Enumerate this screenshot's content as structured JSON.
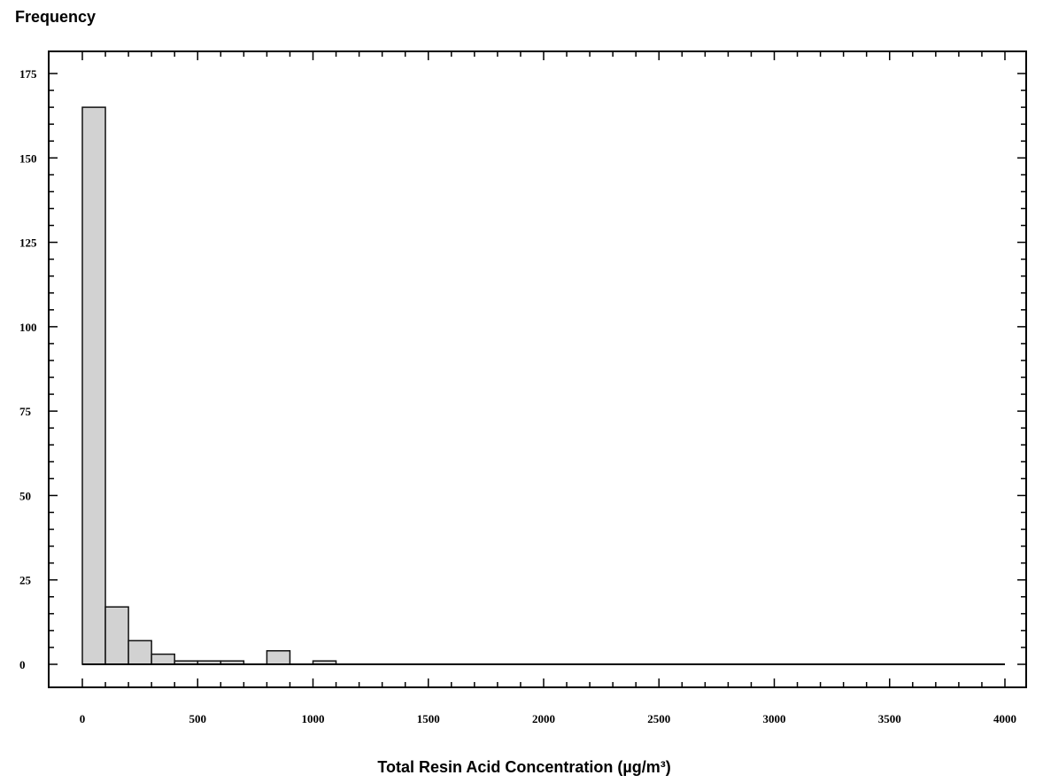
{
  "chart_data": {
    "type": "bar",
    "title": "",
    "ylabel": "Frequency",
    "xlabel": "Total Resin Acid Concentration (µg/m³)",
    "xlim": [
      0,
      4000
    ],
    "ylim": [
      0,
      175
    ],
    "x_ticks": [
      "0",
      "500",
      "1000",
      "1500",
      "2000",
      "2500",
      "3000",
      "3500",
      "4000"
    ],
    "y_ticks": [
      "0",
      "25",
      "50",
      "75",
      "100",
      "125",
      "150",
      "175"
    ],
    "bin_width": 100,
    "bins": [
      {
        "start": 0,
        "end": 100,
        "count": 165
      },
      {
        "start": 100,
        "end": 200,
        "count": 17
      },
      {
        "start": 200,
        "end": 300,
        "count": 7
      },
      {
        "start": 300,
        "end": 400,
        "count": 3
      },
      {
        "start": 400,
        "end": 500,
        "count": 1
      },
      {
        "start": 500,
        "end": 600,
        "count": 1
      },
      {
        "start": 600,
        "end": 700,
        "count": 1
      },
      {
        "start": 700,
        "end": 800,
        "count": 0
      },
      {
        "start": 800,
        "end": 900,
        "count": 4
      },
      {
        "start": 900,
        "end": 1000,
        "count": 0
      },
      {
        "start": 1000,
        "end": 1100,
        "count": 1
      },
      {
        "start": 1100,
        "end": 1200,
        "count": 0
      },
      {
        "start": 1200,
        "end": 1300,
        "count": 0
      },
      {
        "start": 1300,
        "end": 1400,
        "count": 0
      },
      {
        "start": 1400,
        "end": 1500,
        "count": 0
      },
      {
        "start": 1500,
        "end": 1600,
        "count": 0
      },
      {
        "start": 1600,
        "end": 1700,
        "count": 0
      },
      {
        "start": 1700,
        "end": 1800,
        "count": 0
      },
      {
        "start": 1800,
        "end": 1900,
        "count": 0
      },
      {
        "start": 1900,
        "end": 2000,
        "count": 0
      },
      {
        "start": 2000,
        "end": 2100,
        "count": 0
      },
      {
        "start": 2100,
        "end": 2200,
        "count": 0
      },
      {
        "start": 2200,
        "end": 2300,
        "count": 0
      },
      {
        "start": 2300,
        "end": 2400,
        "count": 0
      },
      {
        "start": 2400,
        "end": 2500,
        "count": 0
      },
      {
        "start": 2500,
        "end": 2600,
        "count": 0
      },
      {
        "start": 2600,
        "end": 2700,
        "count": 0
      },
      {
        "start": 2700,
        "end": 2800,
        "count": 0
      },
      {
        "start": 2800,
        "end": 2900,
        "count": 0
      },
      {
        "start": 2900,
        "end": 3000,
        "count": 0
      },
      {
        "start": 3000,
        "end": 3100,
        "count": 0
      },
      {
        "start": 3100,
        "end": 3200,
        "count": 0
      },
      {
        "start": 3200,
        "end": 3300,
        "count": 0
      },
      {
        "start": 3300,
        "end": 3400,
        "count": 0
      },
      {
        "start": 3400,
        "end": 3500,
        "count": 0
      },
      {
        "start": 3500,
        "end": 3600,
        "count": 0
      },
      {
        "start": 3600,
        "end": 3700,
        "count": 0
      },
      {
        "start": 3700,
        "end": 3800,
        "count": 0
      },
      {
        "start": 3800,
        "end": 3900,
        "count": 0
      },
      {
        "start": 3900,
        "end": 4000,
        "count": 0
      }
    ],
    "grid": false,
    "bar_fill": "#d2d2d2",
    "bar_stroke": "#111111"
  }
}
